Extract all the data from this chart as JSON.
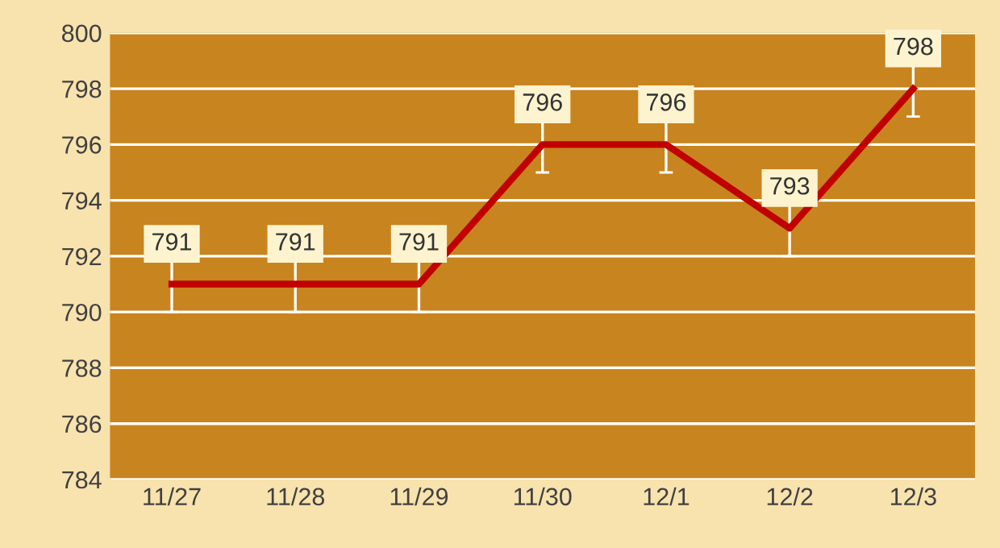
{
  "chart_data": {
    "type": "line",
    "categories": [
      "11/27",
      "11/28",
      "11/29",
      "11/30",
      "12/1",
      "12/2",
      "12/3"
    ],
    "series": [
      {
        "color": "#c00000",
        "values": [
          791,
          791,
          791,
          796,
          796,
          793,
          798
        ],
        "errors": [
          1,
          1,
          1,
          1,
          1,
          1,
          1
        ]
      }
    ],
    "ylim": [
      784,
      800
    ],
    "yticks": [
      784,
      786,
      788,
      790,
      792,
      794,
      796,
      798,
      800
    ],
    "grid": "y",
    "data_labels": true,
    "marker": "none",
    "line_style": "solid",
    "legend": false
  }
}
